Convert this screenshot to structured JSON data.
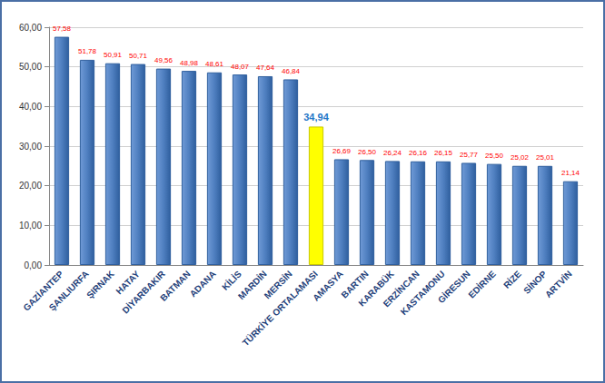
{
  "chart_data": {
    "type": "bar",
    "categories": [
      "GAZİANTEP",
      "ŞANLIURFA",
      "ŞIRNAK",
      "HATAY",
      "DİYARBAKIR",
      "BATMAN",
      "ADANA",
      "KİLİS",
      "MARDİN",
      "MERSİN",
      "TÜRKİYE ORTALAMASI",
      "AMASYA",
      "BARTIN",
      "KARABÜK",
      "ERZİNCAN",
      "KASTAMONU",
      "GİRESUN",
      "EDİRNE",
      "RİZE",
      "SİNOP",
      "ARTVİN"
    ],
    "values": [
      57.58,
      51.78,
      50.91,
      50.71,
      49.56,
      48.98,
      48.61,
      48.07,
      47.64,
      46.84,
      34.94,
      26.69,
      26.5,
      26.24,
      26.16,
      26.15,
      25.77,
      25.5,
      25.02,
      25.01,
      21.14
    ],
    "value_labels": [
      "57,58",
      "51,78",
      "50,91",
      "50,71",
      "49,56",
      "48,98",
      "48,61",
      "48,07",
      "47,64",
      "46,84",
      "34,94",
      "26,69",
      "26,50",
      "26,24",
      "26,16",
      "26,15",
      "25,77",
      "25,50",
      "25,02",
      "25,01",
      "21,14"
    ],
    "colors": [
      "#4f7fc0",
      "#4f7fc0",
      "#4f7fc0",
      "#4f7fc0",
      "#4f7fc0",
      "#4f7fc0",
      "#4f7fc0",
      "#4f7fc0",
      "#4f7fc0",
      "#4f7fc0",
      "#ffff00",
      "#4f7fc0",
      "#4f7fc0",
      "#4f7fc0",
      "#4f7fc0",
      "#4f7fc0",
      "#4f7fc0",
      "#4f7fc0",
      "#4f7fc0",
      "#4f7fc0",
      "#4f7fc0"
    ],
    "ylim": [
      0,
      60
    ],
    "yticks": [
      {
        "value": 0,
        "label": "0,00"
      },
      {
        "value": 10,
        "label": "10,00"
      },
      {
        "value": 20,
        "label": "20,00"
      },
      {
        "value": 30,
        "label": "30,00"
      },
      {
        "value": 40,
        "label": "40,00"
      },
      {
        "value": 50,
        "label": "50,00"
      },
      {
        "value": 60,
        "label": "60,00"
      }
    ],
    "grid": true,
    "data_labels": true
  }
}
